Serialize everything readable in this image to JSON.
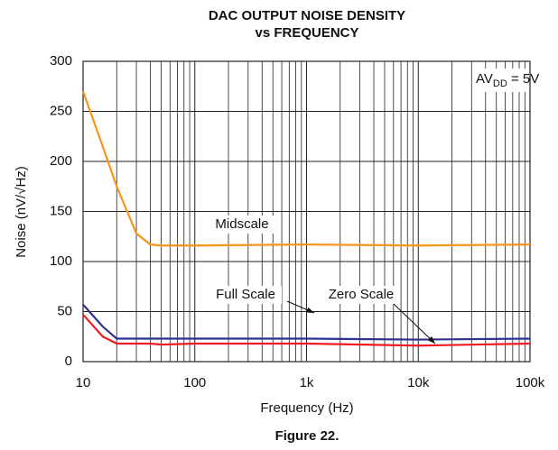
{
  "chart_data": {
    "type": "line",
    "title": "DAC OUTPUT NOISE DENSITY",
    "subtitle": "vs FREQUENCY",
    "x_label": "Frequency (Hz)",
    "y_label": "Noise (nV/√Hz)",
    "caption": "Figure 22.",
    "annotation": {
      "main": "AV",
      "subscript": "DD",
      "suffix": " = 5V"
    },
    "x": [
      10,
      15,
      20,
      30,
      40,
      50,
      100,
      1000,
      10000,
      100000
    ],
    "series": [
      {
        "name": "Midscale",
        "color": "#f7941d",
        "values": [
          270,
          215,
          175,
          128,
          117,
          116,
          116,
          117,
          116,
          117
        ]
      },
      {
        "name": "Full Scale",
        "color": "#2e3192",
        "values": [
          57,
          35,
          23,
          23,
          23,
          23,
          23,
          23,
          22,
          23
        ]
      },
      {
        "name": "Zero Scale",
        "color": "#ed1c24",
        "values": [
          47,
          25,
          18,
          18,
          18,
          17,
          18,
          18,
          16,
          18
        ]
      }
    ],
    "x_log": true,
    "xlim": [
      10,
      100000
    ],
    "xticks": [
      10,
      100,
      {
        "value": 1000,
        "label": "1k"
      },
      {
        "value": 10000,
        "label": "10k"
      },
      {
        "value": 100000,
        "label": "100k"
      }
    ],
    "ylim": [
      0,
      300
    ],
    "yticks": [
      0,
      50,
      100,
      150,
      200,
      250,
      300
    ],
    "grid": true
  }
}
